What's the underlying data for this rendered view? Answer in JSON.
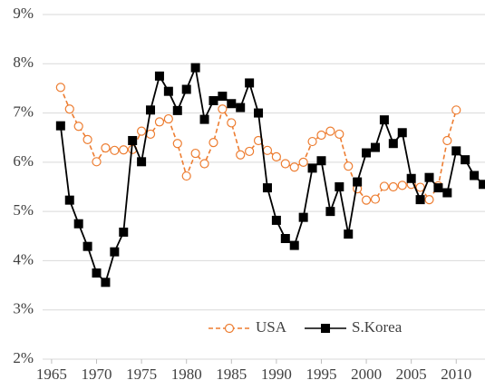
{
  "chart_data": {
    "type": "line",
    "x": [
      1966,
      1967,
      1968,
      1969,
      1970,
      1971,
      1972,
      1973,
      1974,
      1975,
      1976,
      1977,
      1978,
      1979,
      1980,
      1981,
      1982,
      1983,
      1984,
      1985,
      1986,
      1987,
      1988,
      1989,
      1990,
      1991,
      1992,
      1993,
      1994,
      1995,
      1996,
      1997,
      1998,
      1999,
      2000,
      2001,
      2002,
      2003,
      2004,
      2005,
      2006,
      2007,
      2008,
      2009,
      2010,
      2011,
      2012,
      2013
    ],
    "series": [
      {
        "name": "USA",
        "color": "#ed7d31",
        "dashed": true,
        "marker": "circle",
        "values": [
          7.52,
          7.08,
          6.73,
          6.46,
          6.01,
          6.29,
          6.24,
          6.25,
          6.26,
          6.63,
          6.57,
          6.82,
          6.88,
          6.38,
          5.72,
          6.18,
          5.97,
          6.4,
          7.08,
          6.8,
          6.15,
          6.22,
          6.44,
          6.24,
          6.11,
          5.97,
          5.9,
          6.0,
          6.42,
          6.55,
          6.63,
          6.57,
          5.92,
          5.46,
          5.23,
          5.25,
          5.51,
          5.5,
          5.53,
          5.55,
          5.49,
          5.24,
          5.52,
          6.44,
          7.06,
          null,
          null,
          null
        ]
      },
      {
        "name": "S.Korea",
        "color": "#000000",
        "dashed": false,
        "marker": "square",
        "values": [
          6.74,
          5.23,
          4.75,
          4.29,
          3.75,
          3.56,
          4.18,
          4.58,
          6.44,
          6.01,
          7.06,
          7.75,
          7.44,
          7.05,
          7.48,
          7.92,
          6.87,
          7.25,
          7.34,
          7.19,
          7.11,
          7.61,
          7.0,
          5.48,
          4.82,
          4.45,
          4.31,
          4.88,
          5.88,
          6.03,
          5.0,
          5.5,
          4.54,
          5.6,
          6.19,
          6.3,
          6.86,
          6.38,
          6.6,
          5.67,
          5.24,
          5.69,
          5.48,
          5.38,
          6.23,
          6.05,
          5.73,
          5.55
        ]
      }
    ],
    "xlim": [
      1964,
      2013.2
    ],
    "xticks": [
      1965,
      1970,
      1975,
      1980,
      1985,
      1990,
      1995,
      2000,
      2005,
      2010
    ],
    "ylim": [
      2,
      9
    ],
    "yticks": [
      {
        "value": 2,
        "label": "2%"
      },
      {
        "value": 3,
        "label": "3%"
      },
      {
        "value": 4,
        "label": "4%"
      },
      {
        "value": 5,
        "label": "5%"
      },
      {
        "value": 6,
        "label": "6%"
      },
      {
        "value": 7,
        "label": "7%"
      },
      {
        "value": 8,
        "label": "8%"
      },
      {
        "value": 9,
        "label": "9%"
      }
    ],
    "grid": true,
    "legend": "lower right"
  }
}
